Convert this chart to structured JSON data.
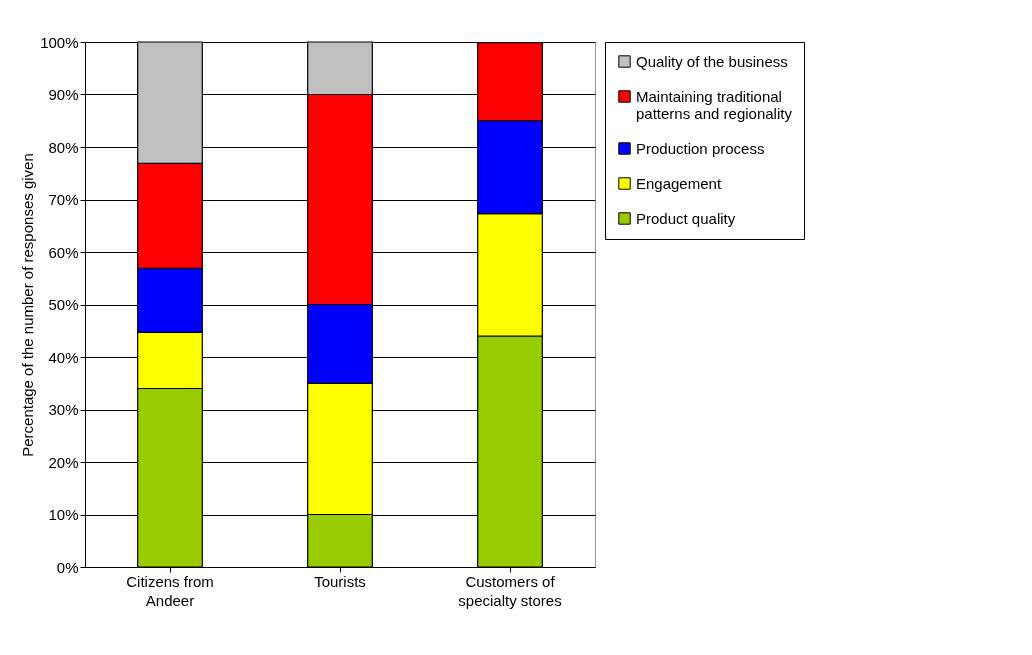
{
  "chart_data": {
    "type": "bar",
    "stacked": true,
    "ylabel": "Percentage of the number of responses given",
    "categories": [
      "Citizens from Andeer",
      "Tourists",
      "Customers of specialty stores"
    ],
    "series": [
      {
        "name": "Product quality",
        "color": "#99cc00",
        "values": [
          34,
          10,
          44
        ]
      },
      {
        "name": "Engagement",
        "color": "#ffff00",
        "values": [
          10.7,
          25,
          23.3
        ]
      },
      {
        "name": "Production process",
        "color": "#0000ff",
        "values": [
          12.2,
          15,
          17.7
        ]
      },
      {
        "name": "Maintaining traditional patterns and regionality",
        "color": "#ff0000",
        "values": [
          20,
          40,
          14.9
        ]
      },
      {
        "name": "Quality of the business",
        "color": "#c0c0c0",
        "values": [
          23.1,
          10,
          null
        ]
      }
    ],
    "ylim": [
      0,
      100
    ],
    "yticks": [
      {
        "value": 0,
        "label": "0%"
      },
      {
        "value": 10,
        "label": "10%"
      },
      {
        "value": 20,
        "label": "20%"
      },
      {
        "value": 30,
        "label": "30%"
      },
      {
        "value": 40,
        "label": "40%"
      },
      {
        "value": 50,
        "label": "50%"
      },
      {
        "value": 60,
        "label": "60%"
      },
      {
        "value": 70,
        "label": "70%"
      },
      {
        "value": 80,
        "label": "80%"
      },
      {
        "value": 90,
        "label": "90%"
      },
      {
        "value": 100,
        "label": "100%"
      }
    ],
    "grid": "y",
    "legend": "right"
  }
}
